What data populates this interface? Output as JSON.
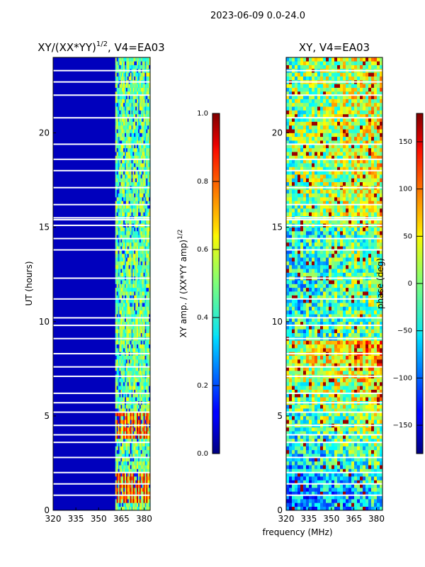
{
  "figure": {
    "suptitle": "2023-06-09 0.0-24.0",
    "xlabel": "frequency (MHz)"
  },
  "chart_data": [
    {
      "type": "heatmap",
      "title": "XY/(XX*YY)",
      "title_exponent": "1/2",
      "title_suffix": ", V4=EA03",
      "xlabel": "",
      "ylabel": "UT (hours)",
      "xlim": [
        320,
        384
      ],
      "ylim": [
        0,
        24
      ],
      "xticks": [
        320,
        335,
        350,
        365,
        380
      ],
      "yticks": [
        0,
        5,
        10,
        15,
        20
      ],
      "colorbar": {
        "label": "XY amp. / (XX*YY amp)",
        "label_exponent": "1/2",
        "vmin": 0.0,
        "vmax": 1.0,
        "ticks": [
          "0.0",
          "0.2",
          "0.4",
          "0.6",
          "0.8",
          "1.0"
        ],
        "tick_values": [
          0.0,
          0.2,
          0.4,
          0.6,
          0.8,
          1.0
        ]
      },
      "blank_rows_ut": [
        0.8,
        1.4,
        2.0,
        2.8,
        3.6,
        4.0,
        4.5,
        5.2,
        5.7,
        6.2,
        7.1,
        7.6,
        8.3,
        9.1,
        9.8,
        10.2,
        11.2,
        12.3,
        13.8,
        14.4,
        15.1,
        15.4,
        15.5,
        16.2,
        17.1,
        18.0,
        18.6,
        19.4,
        20.8,
        22.0,
        22.7,
        23.3
      ],
      "features": [
        {
          "desc": "low amplitude below 361 MHz",
          "f_range": [
            320,
            361
          ],
          "value": 0.05
        },
        {
          "desc": "elevated amplitude 361-384 MHz",
          "f_range": [
            361,
            384
          ],
          "value": 0.45
        },
        {
          "desc": "strong amplitude near 0.5-2 UT",
          "ut_range": [
            0.5,
            2.0
          ],
          "value": 0.8
        },
        {
          "desc": "strong amplitude near 3.8-5.3 UT",
          "ut_range": [
            3.8,
            5.3
          ],
          "value": 0.8
        }
      ]
    },
    {
      "type": "heatmap",
      "title": "XY, V4=EA03",
      "xlabel": "",
      "ylabel": "",
      "xlim": [
        320,
        384
      ],
      "ylim": [
        0,
        24
      ],
      "xticks": [
        320,
        335,
        350,
        365,
        380
      ],
      "yticks": [
        0,
        5,
        10,
        15,
        20
      ],
      "colorbar": {
        "label": "phase (deg)",
        "vmin": -180,
        "vmax": 180,
        "ticks": [
          "−150",
          "−100",
          "−50",
          "0",
          "50",
          "100",
          "150"
        ],
        "tick_values": [
          -150,
          -100,
          -50,
          0,
          50,
          100,
          150
        ]
      },
      "blank_rows_ut": [
        0.8,
        1.4,
        2.0,
        2.8,
        3.6,
        4.0,
        4.5,
        5.2,
        5.7,
        6.2,
        7.1,
        7.6,
        8.3,
        9.1,
        9.8,
        10.2,
        11.2,
        12.3,
        13.8,
        14.4,
        15.1,
        15.4,
        15.5,
        16.2,
        17.1,
        18.0,
        18.6,
        19.4,
        20.8,
        22.0,
        22.7,
        23.3
      ],
      "features": [
        {
          "desc": "phase drifting from about -80 deg at 0 UT to about +60 deg near 8 UT",
          "ut_range": [
            0,
            9
          ],
          "phase_deg": [
            -80,
            60
          ]
        },
        {
          "desc": "phase near 0 to +30 deg between 15 and 24 UT",
          "ut_range": [
            15,
            24
          ],
          "phase_deg": [
            0,
            30
          ]
        }
      ]
    }
  ]
}
